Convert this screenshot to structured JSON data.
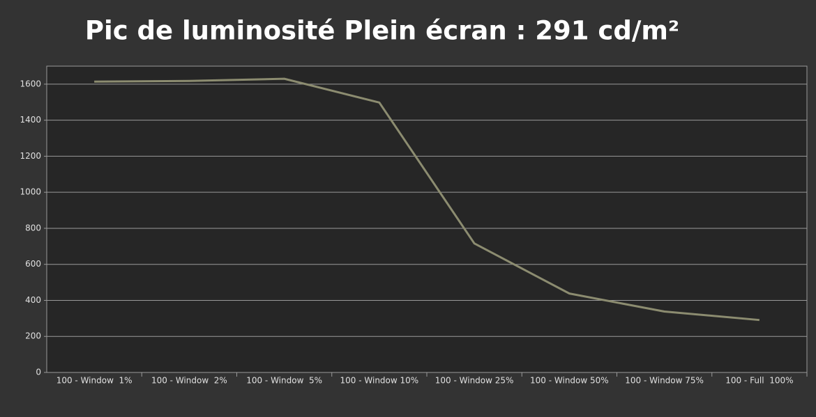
{
  "chart_data": {
    "type": "line",
    "title": "Pic de luminosité Plein écran : 291 cd/m²",
    "categories": [
      "100 - Window  1%",
      "100 - Window  2%",
      "100 - Window  5%",
      "100 - Window 10%",
      "100 - Window 25%",
      "100 - Window 50%",
      "100 - Window 75%",
      "100 - Full  100%"
    ],
    "series": [
      {
        "color": "#8c8c70",
        "values": [
          1614,
          1618,
          1630,
          1498,
          716,
          438,
          338,
          291
        ]
      }
    ],
    "ylim": [
      0,
      1700
    ],
    "yticks": [
      0,
      200,
      400,
      600,
      800,
      1000,
      1200,
      1400,
      1600
    ],
    "grid": true
  }
}
